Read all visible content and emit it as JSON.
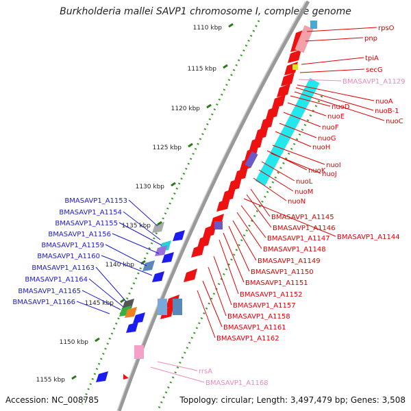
{
  "title": "Burkholderia mallei SAVP1 chromosome I, complete genome",
  "footer": {
    "accession": "Accession: NC_008785",
    "topology": "Topology: circular; Length: 3,497,479 bp; Genes: 3,508"
  },
  "colors": {
    "backbone": "#888888",
    "tick": "#2a7a1a",
    "dotted_ring": "#3a9a2a",
    "gene_red": "#ee1111",
    "gene_cyan": "#22e8ee",
    "gene_blue": "#1c1cee",
    "gene_pink": "#f4a0c8",
    "gene_gray": "#8a8a8a",
    "gene_purple": "#6a5ac8",
    "label_red": "#dd0000",
    "label_blue": "#1a1acc",
    "label_pink": "#ee88bb"
  },
  "kbp_ticks": [
    "1110 kbp",
    "1115 kbp",
    "1120 kbp",
    "1125 kbp",
    "1130 kbp",
    "1135 kbp",
    "1140 kbp",
    "1145 kbp",
    "1150 kbp",
    "1155 kbp"
  ],
  "right_labels": [
    {
      "text": "rpsO",
      "color": "red"
    },
    {
      "text": "pnp",
      "color": "red"
    },
    {
      "text": "tpiA",
      "color": "red"
    },
    {
      "text": "secG",
      "color": "red"
    },
    {
      "text": "BMASAVP1_A1129",
      "color": "pink"
    },
    {
      "text": "nuoA",
      "color": "red"
    },
    {
      "text": "nuoB-1",
      "color": "red"
    },
    {
      "text": "nuoC",
      "color": "red"
    },
    {
      "text": "nuoD",
      "color": "red"
    },
    {
      "text": "nuoE",
      "color": "red"
    },
    {
      "text": "nuoF",
      "color": "red"
    },
    {
      "text": "nuoG",
      "color": "red"
    },
    {
      "text": "nuoH",
      "color": "red"
    },
    {
      "text": "nuoI",
      "color": "red"
    },
    {
      "text": "nuoJ",
      "color": "red"
    },
    {
      "text": "nuoK",
      "color": "red"
    },
    {
      "text": "nuoL",
      "color": "red"
    },
    {
      "text": "nuoM",
      "color": "red"
    },
    {
      "text": "nuoN",
      "color": "red"
    },
    {
      "text": "BMASAVP1_A1145",
      "color": "red"
    },
    {
      "text": "BMASAVP1_A1146",
      "color": "red"
    },
    {
      "text": "BMASAVP1_A1144",
      "color": "red"
    },
    {
      "text": "BMASAVP1_A1147",
      "color": "red"
    },
    {
      "text": "BMASAVP1_A1148",
      "color": "red"
    },
    {
      "text": "BMASAVP1_A1149",
      "color": "red"
    },
    {
      "text": "BMASAVP1_A1150",
      "color": "red"
    },
    {
      "text": "BMASAVP1_A1151",
      "color": "red"
    },
    {
      "text": "BMASAVP1_A1152",
      "color": "red"
    },
    {
      "text": "BMASAVP1_A1157",
      "color": "red"
    },
    {
      "text": "BMASAVP1_A1158",
      "color": "red"
    },
    {
      "text": "BMASAVP1_A1161",
      "color": "red"
    },
    {
      "text": "BMASAVP1_A1162",
      "color": "red"
    },
    {
      "text": "rrsA",
      "color": "pink"
    },
    {
      "text": "BMASAVP1_A1168",
      "color": "pink"
    }
  ],
  "left_labels": [
    {
      "text": "BMASAVP1_A1153"
    },
    {
      "text": "BMASAVP1_A1154"
    },
    {
      "text": "BMASAVP1_A1155"
    },
    {
      "text": "BMASAVP1_A1156"
    },
    {
      "text": "BMASAVP1_A1159"
    },
    {
      "text": "BMASAVP1_A1160"
    },
    {
      "text": "BMASAVP1_A1163"
    },
    {
      "text": "BMASAVP1_A1164"
    },
    {
      "text": "BMASAVP1_A1165"
    },
    {
      "text": "BMASAVP1_A1166"
    }
  ]
}
